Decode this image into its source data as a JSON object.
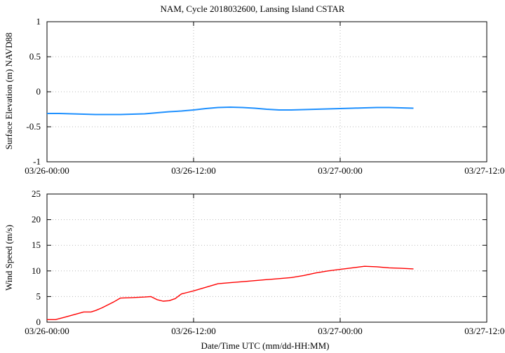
{
  "title": "NAM, Cycle 2018032600,  Lansing Island CSTAR",
  "xlabel": "Date/Time UTC (mm/dd-HH:MM)",
  "chart_data": [
    {
      "type": "line",
      "ylabel": "Surface Elevation (m) NAVD88",
      "x_ticks": [
        "03/26-00:00",
        "03/26-12:00",
        "03/27-00:00",
        "03/27-12:00"
      ],
      "xlim": [
        0,
        36
      ],
      "ylim": [
        -1,
        1
      ],
      "y_ticks": [
        -1,
        -0.5,
        0,
        0.5,
        1
      ],
      "y_tick_labels": [
        "-1",
        "-0.5",
        "0",
        "0.5",
        "1"
      ],
      "grid": true,
      "series": [
        {
          "color": "#1e90ff",
          "x_hours": [
            0,
            1,
            2,
            3,
            4,
            5,
            6,
            7,
            8,
            9,
            10,
            11,
            12,
            13,
            14,
            15,
            16,
            17,
            18,
            19,
            20,
            21,
            22,
            23,
            24,
            25,
            26,
            27,
            28,
            29,
            30
          ],
          "y": [
            -0.31,
            -0.31,
            -0.315,
            -0.32,
            -0.325,
            -0.325,
            -0.325,
            -0.32,
            -0.315,
            -0.3,
            -0.285,
            -0.275,
            -0.26,
            -0.24,
            -0.225,
            -0.22,
            -0.225,
            -0.235,
            -0.25,
            -0.26,
            -0.26,
            -0.255,
            -0.25,
            -0.245,
            -0.24,
            -0.235,
            -0.23,
            -0.225,
            -0.225,
            -0.23,
            -0.235
          ]
        }
      ]
    },
    {
      "type": "line",
      "ylabel": "Wind Speed (m/s)",
      "x_ticks": [
        "03/26-00:00",
        "03/26-12:00",
        "03/27-00:00",
        "03/27-12:00"
      ],
      "xlim": [
        0,
        36
      ],
      "ylim": [
        0,
        25
      ],
      "y_ticks": [
        0,
        5,
        10,
        15,
        20,
        25
      ],
      "y_tick_labels": [
        "0",
        "5",
        "10",
        "15",
        "20",
        "25"
      ],
      "grid": true,
      "series": [
        {
          "color": "#ff0000",
          "x_hours": [
            0,
            0.7,
            1.5,
            3,
            3.6,
            4,
            4.5,
            5,
            5.5,
            6,
            7,
            8,
            8.5,
            9,
            9.5,
            10,
            10.5,
            11,
            11.5,
            12,
            13,
            14,
            15,
            16,
            17,
            18,
            19,
            20,
            21,
            22,
            23,
            24,
            25,
            26,
            27,
            28,
            29,
            30
          ],
          "y": [
            0.5,
            0.5,
            1.0,
            2.0,
            2.0,
            2.3,
            2.8,
            3.4,
            4.0,
            4.7,
            4.8,
            4.9,
            5.0,
            4.4,
            4.1,
            4.2,
            4.6,
            5.5,
            5.8,
            6.1,
            6.8,
            7.5,
            7.7,
            7.9,
            8.1,
            8.3,
            8.5,
            8.7,
            9.1,
            9.6,
            10.0,
            10.3,
            10.6,
            10.9,
            10.8,
            10.6,
            10.5,
            10.4
          ]
        }
      ]
    }
  ]
}
